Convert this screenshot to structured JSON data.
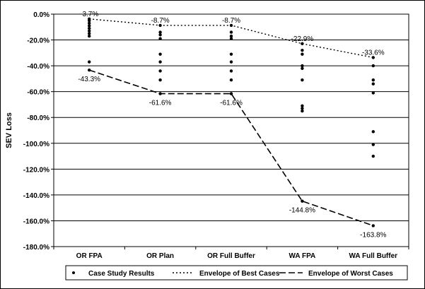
{
  "chart_data": {
    "type": "scatter",
    "ylabel": "SEV Loss",
    "xlabel": "",
    "title": "",
    "categories": [
      "OR FPA",
      "OR Plan",
      "OR Full Buffer",
      "WA FPA",
      "WA Full Buffer"
    ],
    "ylim": [
      -180,
      0
    ],
    "yticks": [
      0,
      -20,
      -40,
      -60,
      -80,
      -100,
      -120,
      -140,
      -160,
      -180
    ],
    "ytick_labels": [
      "0.0%",
      "-20.0%",
      "-40.0%",
      "-60.0%",
      "-80.0%",
      "-100.0%",
      "-120.0%",
      "-140.0%",
      "-160.0%",
      "-180.0%"
    ],
    "grid": true,
    "legend_position": "bottom",
    "series": [
      {
        "name": "Case Study Results",
        "style": "markers",
        "points": [
          [
            [
              0,
              -3.7
            ],
            [
              0,
              -5
            ],
            [
              0,
              -7
            ],
            [
              0,
              -9
            ],
            [
              0,
              -11
            ],
            [
              0,
              -13
            ],
            [
              0,
              -15
            ],
            [
              0,
              -17
            ],
            [
              0,
              -37
            ],
            [
              0,
              -43.3
            ]
          ],
          [
            [
              1,
              -8.7
            ],
            [
              1,
              -14
            ],
            [
              1,
              -16
            ],
            [
              1,
              -19
            ],
            [
              1,
              -31
            ],
            [
              1,
              -37
            ],
            [
              1,
              -44
            ],
            [
              1,
              -51
            ],
            [
              1,
              -61.6
            ]
          ],
          [
            [
              2,
              -8.7
            ],
            [
              2,
              -14
            ],
            [
              2,
              -17
            ],
            [
              2,
              -19
            ],
            [
              2,
              -31
            ],
            [
              2,
              -37
            ],
            [
              2,
              -44
            ],
            [
              2,
              -51
            ],
            [
              2,
              -61.6
            ]
          ],
          [
            [
              3,
              -22.9
            ],
            [
              3,
              -28
            ],
            [
              3,
              -31
            ],
            [
              3,
              -40
            ],
            [
              3,
              -42
            ],
            [
              3,
              -51
            ],
            [
              3,
              -71
            ],
            [
              3,
              -73
            ],
            [
              3,
              -75
            ],
            [
              3,
              -144.8
            ]
          ],
          [
            [
              4,
              -33.6
            ],
            [
              4,
              -40
            ],
            [
              4,
              -51
            ],
            [
              4,
              -54
            ],
            [
              4,
              -61
            ],
            [
              4,
              -91
            ],
            [
              4,
              -101
            ],
            [
              4,
              -110
            ],
            [
              4,
              -163.8
            ]
          ]
        ]
      },
      {
        "name": "Envelope of Best Cases",
        "style": "dotted",
        "values": [
          -3.7,
          -8.7,
          -8.7,
          -22.9,
          -33.6
        ],
        "labels": [
          "-3.7%",
          "-8.7%",
          "-8.7%",
          "-22.9%",
          "-33.6%"
        ]
      },
      {
        "name": "Envelope of Worst Cases",
        "style": "dashed",
        "values": [
          -43.3,
          -61.6,
          -61.6,
          -144.8,
          -163.8
        ],
        "labels": [
          "-43.3%",
          "-61.6%",
          "-61.6%",
          "-144.8%",
          "-163.8%"
        ]
      }
    ]
  }
}
